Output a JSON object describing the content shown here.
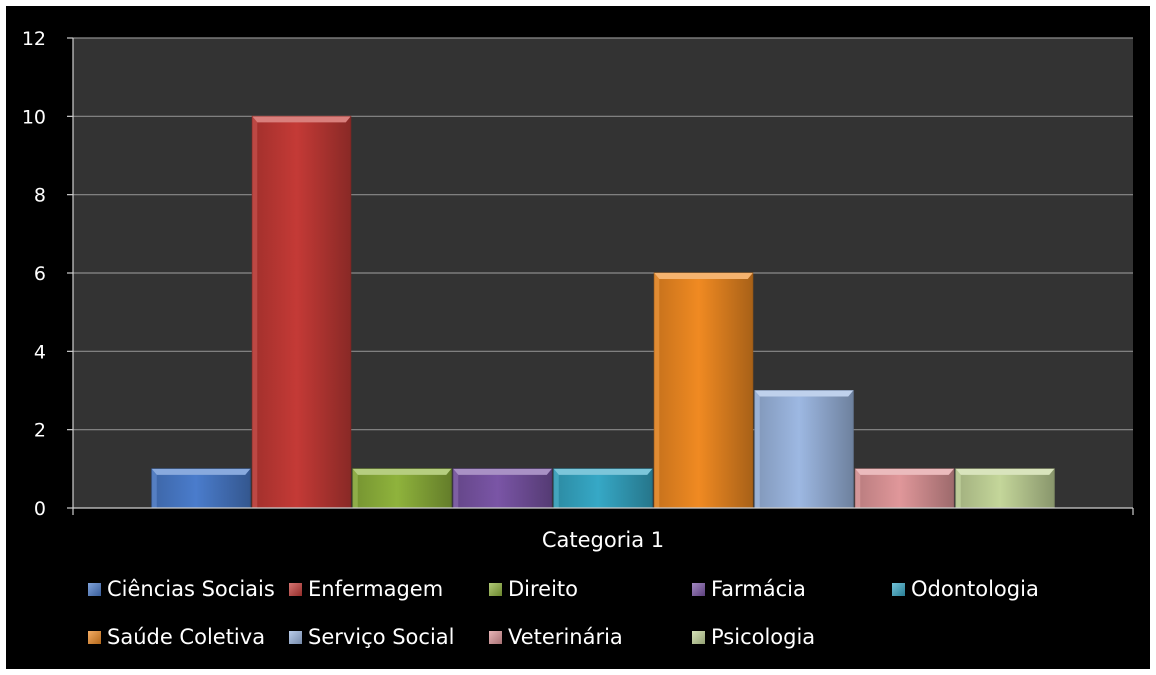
{
  "chart_data": {
    "type": "bar",
    "categories": [
      "Categoria 1"
    ],
    "series": [
      {
        "name": "Ciências Sociais",
        "values": [
          1
        ],
        "color": "#4a7ccc"
      },
      {
        "name": "Enfermagem",
        "values": [
          10
        ],
        "color": "#c43a36"
      },
      {
        "name": "Direito",
        "values": [
          1
        ],
        "color": "#8fb33c"
      },
      {
        "name": "Farmácia",
        "values": [
          1
        ],
        "color": "#7a55a6"
      },
      {
        "name": "Odontologia",
        "values": [
          1
        ],
        "color": "#36a8c6"
      },
      {
        "name": "Saúde Coletiva",
        "values": [
          6
        ],
        "color": "#f08a22"
      },
      {
        "name": "Serviço Social",
        "values": [
          3
        ],
        "color": "#9db8e2"
      },
      {
        "name": "Veterinária",
        "values": [
          1
        ],
        "color": "#e0979a"
      },
      {
        "name": "Psicologia",
        "values": [
          1
        ],
        "color": "#c4d69a"
      }
    ],
    "ylim": [
      0,
      12
    ],
    "yticks": [
      0,
      2,
      4,
      6,
      8,
      10,
      12
    ],
    "grid": true,
    "legend_position": "bottom",
    "plot_background": "#333333",
    "gridline_color": "#8c8c8c"
  }
}
